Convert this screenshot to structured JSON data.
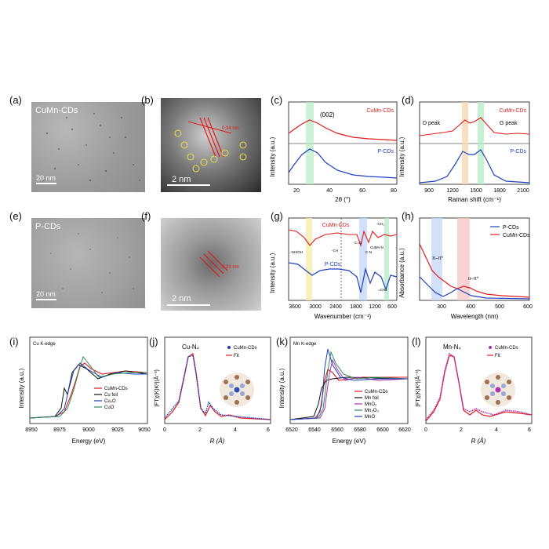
{
  "panels": {
    "a": {
      "letter": "(a)",
      "label": "CuMn-CDs",
      "scale": "20 nm"
    },
    "b": {
      "letter": "(b)",
      "scale": "2 nm",
      "annot": "0.34 nm"
    },
    "c": {
      "letter": "(c)",
      "xlabel": "2θ (°)",
      "ylabel": "Intensity (a.u.)",
      "peak_label": "(002)",
      "series_top": "CuMn-CDs",
      "series_bottom": "P-CDs",
      "xticks": [
        "20",
        "40",
        "60",
        "80"
      ]
    },
    "d": {
      "letter": "(d)",
      "xlabel": "Raman shift (cm⁻¹)",
      "ylabel": "Intensity (a.u.)",
      "series_top": "CuMn-CDs",
      "series_bottom": "P-CDs",
      "d_peak": "D peak",
      "g_peak": "G peak",
      "xticks": [
        "900",
        "1200",
        "1500",
        "1800",
        "2100"
      ]
    },
    "e": {
      "letter": "(e)",
      "label": "P-CDs",
      "scale": "20 nm"
    },
    "f": {
      "letter": "(f)",
      "scale": "2 nm",
      "annot": "0.21 nm"
    },
    "g": {
      "letter": "(g)",
      "xlabel": "Wavenumber (cm⁻¹)",
      "ylabel": "Intensity (a.u.)",
      "series_top": "CuMn-CDs",
      "series_bottom": "P-CDs",
      "xticks": [
        "3600",
        "3000",
        "2400",
        "1800",
        "1200",
        "600"
      ],
      "ann_nhoh": "-NH/OH",
      "ann_ch": "-CH",
      "ann_co": "C=O",
      "ann_cn": "C-N",
      "ann_cumn": "CuMn-N",
      "ann_ch3": "-CH₃",
      "ann_ch2": "=CH2"
    },
    "h": {
      "letter": "(h)",
      "xlabel": "Wavelength (nm)",
      "ylabel": "Absorbance (a.u.)",
      "legend": [
        "P-CDs",
        "CuMn-CDs"
      ],
      "pi_pi": "π–π*",
      "n_pi": "n–π*",
      "xticks": [
        "300",
        "400",
        "500",
        "600"
      ]
    },
    "i": {
      "letter": "(i)",
      "title": "Cu K-edge",
      "xlabel": "Energy (eV)",
      "ylabel": "Intensity (a.u.)",
      "legend": [
        "CuMn-CDs",
        "Cu foil",
        "Cu₂O",
        "CuO"
      ],
      "xticks": [
        "8950",
        "8975",
        "9000",
        "9025",
        "9050"
      ]
    },
    "j": {
      "letter": "(j)",
      "title": "Cu-N₄",
      "xlabel": "R (Å)",
      "ylabel": "|FTχ(K)K²|(Å⁻³)",
      "legend": [
        "CuMn-CDs",
        "Fit"
      ],
      "xticks": [
        "0",
        "2",
        "4",
        "6"
      ]
    },
    "k": {
      "letter": "(k)",
      "title": "Mn K-edge",
      "xlabel": "Energy (eV)",
      "ylabel": "Intensity (a.u.)",
      "legend": [
        "CuMn-CDs",
        "Mn foil",
        "MnO₂",
        "Mn₂O₃",
        "MnO"
      ],
      "xticks": [
        "6520",
        "6540",
        "6560",
        "6580",
        "6600",
        "6620"
      ]
    },
    "l": {
      "letter": "(l)",
      "title": "Mn-N₄",
      "xlabel": "R (Å)",
      "ylabel": "|FTχ(K)K²|(Å⁻³)",
      "legend": [
        "CuMn-CDs",
        "Fit"
      ],
      "xticks": [
        "0",
        "2",
        "4",
        "6"
      ]
    }
  },
  "colors": {
    "red": "#e31a1c",
    "blue": "#1f3fbf",
    "black": "#111111",
    "green": "#2e8b57",
    "purple": "#b030b0",
    "highlight_green": "#b8ecc8",
    "highlight_orange": "#f8d8b0",
    "highlight_blue": "#c8d8f8",
    "highlight_pink": "#f8c8c8",
    "highlight_yellow": "#f8eeb0"
  }
}
